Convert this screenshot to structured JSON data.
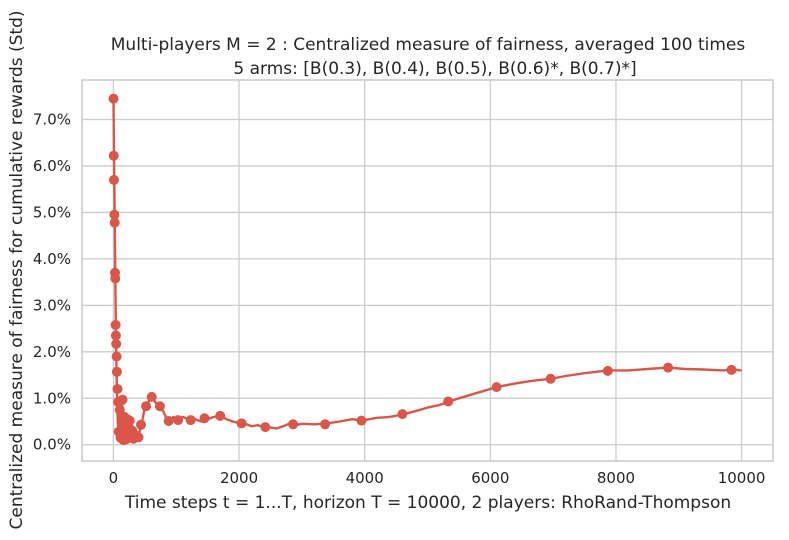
{
  "chart_data": {
    "type": "line",
    "title": "Multi-players M = 2 : Centralized measure of fairness, averaged 100 times",
    "subtitle": "5 arms: [B(0.3), B(0.4), B(0.5), B(0.6)*, B(0.7)*]",
    "xlabel": "Time steps t = 1...T, horizon T = 10000, 2 players: RhoRand-Thompson",
    "ylabel": "Centralized measure of fairness for cumulative rewards (Std)",
    "xlim": [
      -500,
      10500
    ],
    "ylim": [
      -0.35,
      7.85
    ],
    "x_ticks": [
      0,
      2000,
      4000,
      6000,
      8000,
      10000
    ],
    "x_tick_labels": [
      "0",
      "2000",
      "4000",
      "6000",
      "8000",
      "10000"
    ],
    "y_ticks": [
      0,
      1,
      2,
      3,
      4,
      5,
      6,
      7
    ],
    "y_tick_labels": [
      "0.0%",
      "1.0%",
      "2.0%",
      "3.0%",
      "4.0%",
      "5.0%",
      "6.0%",
      "7.0%"
    ],
    "grid": true,
    "color": "#d9574a",
    "series": [
      {
        "line": [
          [
            1,
            7.45
          ],
          [
            10,
            6.2
          ],
          [
            20,
            4.9
          ],
          [
            30,
            3.6
          ],
          [
            40,
            2.5
          ],
          [
            50,
            1.5
          ],
          [
            60,
            0.9
          ],
          [
            70,
            0.5
          ],
          [
            80,
            0.25
          ],
          [
            90,
            0.6
          ],
          [
            100,
            0.9
          ],
          [
            110,
            0.2
          ],
          [
            120,
            0.1
          ],
          [
            130,
            0.5
          ],
          [
            140,
            0.9
          ],
          [
            150,
            0.4
          ],
          [
            160,
            0.15
          ],
          [
            180,
            0.5
          ],
          [
            200,
            0.3
          ],
          [
            220,
            0.1
          ],
          [
            240,
            0.5
          ],
          [
            260,
            0.3
          ],
          [
            280,
            0.2
          ],
          [
            300,
            0.4
          ],
          [
            320,
            0.1
          ],
          [
            340,
            0.15
          ],
          [
            360,
            0.3
          ],
          [
            400,
            0.2
          ],
          [
            450,
            0.45
          ],
          [
            500,
            0.8
          ],
          [
            550,
            0.9
          ],
          [
            600,
            1.05
          ],
          [
            650,
            0.95
          ],
          [
            700,
            0.85
          ],
          [
            750,
            0.8
          ],
          [
            800,
            0.7
          ],
          [
            850,
            0.55
          ],
          [
            900,
            0.5
          ],
          [
            950,
            0.6
          ],
          [
            1000,
            0.55
          ],
          [
            1050,
            0.5
          ],
          [
            1100,
            0.6
          ],
          [
            1200,
            0.55
          ],
          [
            1300,
            0.55
          ],
          [
            1400,
            0.5
          ],
          [
            1450,
            0.6
          ],
          [
            1500,
            0.55
          ],
          [
            1600,
            0.6
          ],
          [
            1700,
            0.62
          ],
          [
            1800,
            0.55
          ],
          [
            1900,
            0.5
          ],
          [
            2000,
            0.47
          ],
          [
            2100,
            0.45
          ],
          [
            2200,
            0.4
          ],
          [
            2300,
            0.42
          ],
          [
            2400,
            0.38
          ],
          [
            2500,
            0.37
          ],
          [
            2600,
            0.35
          ],
          [
            2700,
            0.4
          ],
          [
            2800,
            0.45
          ],
          [
            2900,
            0.42
          ],
          [
            3000,
            0.45
          ],
          [
            3200,
            0.44
          ],
          [
            3400,
            0.46
          ],
          [
            3600,
            0.5
          ],
          [
            3800,
            0.55
          ],
          [
            3950,
            0.52
          ],
          [
            4200,
            0.58
          ],
          [
            4400,
            0.6
          ],
          [
            4600,
            0.65
          ],
          [
            4800,
            0.72
          ],
          [
            5000,
            0.8
          ],
          [
            5200,
            0.86
          ],
          [
            5330,
            0.92
          ],
          [
            5500,
            1.0
          ],
          [
            5800,
            1.12
          ],
          [
            6100,
            1.24
          ],
          [
            6400,
            1.32
          ],
          [
            6700,
            1.38
          ],
          [
            6960,
            1.42
          ],
          [
            7200,
            1.48
          ],
          [
            7500,
            1.54
          ],
          [
            7870,
            1.6
          ],
          [
            8200,
            1.6
          ],
          [
            8500,
            1.63
          ],
          [
            8830,
            1.66
          ],
          [
            9100,
            1.63
          ],
          [
            9400,
            1.62
          ],
          [
            9700,
            1.6
          ],
          [
            9840,
            1.62
          ],
          [
            10000,
            1.6
          ]
        ],
        "markers": [
          [
            1,
            7.45
          ],
          [
            5,
            6.22
          ],
          [
            10,
            5.7
          ],
          [
            15,
            4.95
          ],
          [
            20,
            4.78
          ],
          [
            25,
            3.7
          ],
          [
            30,
            3.58
          ],
          [
            35,
            2.58
          ],
          [
            40,
            2.35
          ],
          [
            45,
            2.17
          ],
          [
            50,
            1.9
          ],
          [
            55,
            1.57
          ],
          [
            65,
            1.2
          ],
          [
            75,
            0.92
          ],
          [
            85,
            0.28
          ],
          [
            100,
            0.75
          ],
          [
            115,
            0.15
          ],
          [
            130,
            0.22
          ],
          [
            145,
            0.97
          ],
          [
            160,
            0.1
          ],
          [
            175,
            0.6
          ],
          [
            190,
            0.3
          ],
          [
            205,
            0.12
          ],
          [
            220,
            0.55
          ],
          [
            240,
            0.42
          ],
          [
            260,
            0.52
          ],
          [
            280,
            0.23
          ],
          [
            300,
            0.3
          ],
          [
            320,
            0.13
          ],
          [
            360,
            0.19
          ],
          [
            400,
            0.16
          ],
          [
            440,
            0.43
          ],
          [
            520,
            0.83
          ],
          [
            610,
            1.03
          ],
          [
            740,
            0.83
          ],
          [
            880,
            0.51
          ],
          [
            1030,
            0.53
          ],
          [
            1230,
            0.53
          ],
          [
            1450,
            0.57
          ],
          [
            1700,
            0.62
          ],
          [
            2040,
            0.46
          ],
          [
            2420,
            0.38
          ],
          [
            2860,
            0.44
          ],
          [
            3370,
            0.44
          ],
          [
            3950,
            0.52
          ],
          [
            4600,
            0.66
          ],
          [
            5330,
            0.93
          ],
          [
            6100,
            1.24
          ],
          [
            6960,
            1.42
          ],
          [
            7870,
            1.59
          ],
          [
            8830,
            1.66
          ],
          [
            9840,
            1.61
          ]
        ]
      }
    ]
  }
}
